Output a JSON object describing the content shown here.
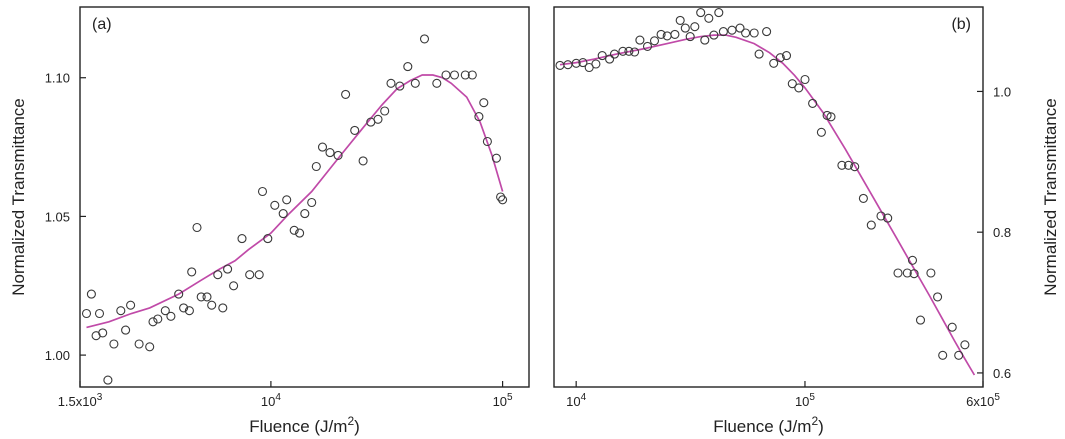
{
  "chart_data": [
    {
      "type": "scatter",
      "panel_label": "(a)",
      "xlabel": "Fluence (J/m",
      "xlabel_sup": "2",
      "xlabel_tail": ")",
      "ylabel": "Normalized Transmittance",
      "x_scale": "log",
      "xlim": [
        1500,
        130000
      ],
      "ylim": [
        0.9885,
        1.1255
      ],
      "xticks": [
        {
          "value": 1500,
          "base": "1.5x10",
          "exp": "3"
        },
        {
          "value": 10000,
          "base": "10",
          "exp": "4"
        },
        {
          "value": 100000,
          "base": "10",
          "exp": "5"
        }
      ],
      "yticks": [
        {
          "value": 1.0,
          "label": "1.00"
        },
        {
          "value": 1.05,
          "label": "1.05"
        },
        {
          "value": 1.1,
          "label": "1.10"
        }
      ],
      "y_axis_side": "left",
      "marker_color": "#3a3a3a",
      "fit_color": "#c04aa8",
      "points": [
        [
          1600,
          1.015
        ],
        [
          1680,
          1.022
        ],
        [
          1760,
          1.007
        ],
        [
          1820,
          1.015
        ],
        [
          1880,
          1.008
        ],
        [
          1980,
          0.991
        ],
        [
          2100,
          1.004
        ],
        [
          2250,
          1.016
        ],
        [
          2360,
          1.009
        ],
        [
          2480,
          1.018
        ],
        [
          2700,
          1.004
        ],
        [
          3000,
          1.003
        ],
        [
          3100,
          1.012
        ],
        [
          3250,
          1.013
        ],
        [
          3500,
          1.016
        ],
        [
          3700,
          1.014
        ],
        [
          4000,
          1.022
        ],
        [
          4200,
          1.017
        ],
        [
          4450,
          1.016
        ],
        [
          4550,
          1.03
        ],
        [
          4800,
          1.046
        ],
        [
          5000,
          1.021
        ],
        [
          5300,
          1.021
        ],
        [
          5550,
          1.018
        ],
        [
          5900,
          1.029
        ],
        [
          6200,
          1.017
        ],
        [
          6500,
          1.031
        ],
        [
          6900,
          1.025
        ],
        [
          7500,
          1.042
        ],
        [
          8100,
          1.029
        ],
        [
          8900,
          1.029
        ],
        [
          9200,
          1.059
        ],
        [
          9700,
          1.042
        ],
        [
          10400,
          1.054
        ],
        [
          11300,
          1.051
        ],
        [
          11700,
          1.056
        ],
        [
          12600,
          1.045
        ],
        [
          13300,
          1.044
        ],
        [
          14000,
          1.051
        ],
        [
          15000,
          1.055
        ],
        [
          15700,
          1.068
        ],
        [
          16700,
          1.075
        ],
        [
          18000,
          1.073
        ],
        [
          19500,
          1.072
        ],
        [
          21000,
          1.094
        ],
        [
          23000,
          1.081
        ],
        [
          25000,
          1.07
        ],
        [
          27000,
          1.084
        ],
        [
          29000,
          1.085
        ],
        [
          31000,
          1.088
        ],
        [
          33000,
          1.098
        ],
        [
          36000,
          1.097
        ],
        [
          39000,
          1.104
        ],
        [
          42000,
          1.098
        ],
        [
          46000,
          1.114
        ],
        [
          52000,
          1.098
        ],
        [
          57000,
          1.101
        ],
        [
          62000,
          1.101
        ],
        [
          69000,
          1.101
        ],
        [
          74000,
          1.101
        ],
        [
          79000,
          1.086
        ],
        [
          83000,
          1.091
        ],
        [
          86000,
          1.077
        ],
        [
          94000,
          1.071
        ],
        [
          98000,
          1.057
        ],
        [
          100000,
          1.056
        ]
      ],
      "fit_curve": [
        [
          1600,
          1.01
        ],
        [
          2000,
          1.012
        ],
        [
          2500,
          1.015
        ],
        [
          3000,
          1.017
        ],
        [
          4000,
          1.022
        ],
        [
          5000,
          1.027
        ],
        [
          6000,
          1.031
        ],
        [
          7000,
          1.034
        ],
        [
          8000,
          1.038
        ],
        [
          10000,
          1.044
        ],
        [
          12000,
          1.051
        ],
        [
          15000,
          1.059
        ],
        [
          20000,
          1.072
        ],
        [
          25000,
          1.082
        ],
        [
          30000,
          1.09
        ],
        [
          35000,
          1.096
        ],
        [
          40000,
          1.099
        ],
        [
          45000,
          1.101
        ],
        [
          50000,
          1.101
        ],
        [
          55000,
          1.1
        ],
        [
          60000,
          1.098
        ],
        [
          70000,
          1.093
        ],
        [
          80000,
          1.084
        ],
        [
          90000,
          1.072
        ],
        [
          100000,
          1.059
        ]
      ]
    },
    {
      "type": "scatter",
      "panel_label": "(b)",
      "xlabel": "Fluence (J/m",
      "xlabel_sup": "2",
      "xlabel_tail": ")",
      "ylabel": "Normalized Transmittance",
      "x_scale": "log",
      "xlim": [
        8000,
        600000
      ],
      "ylim": [
        0.58,
        1.12
      ],
      "xticks": [
        {
          "value": 10000,
          "base": "10",
          "exp": "4"
        },
        {
          "value": 100000,
          "base": "10",
          "exp": "5"
        },
        {
          "value": 600000,
          "base": "6x10",
          "exp": "5"
        }
      ],
      "yticks": [
        {
          "value": 0.6,
          "label": "0.6"
        },
        {
          "value": 0.8,
          "label": "0.8"
        },
        {
          "value": 1.0,
          "label": "1.0"
        }
      ],
      "y_axis_side": "right",
      "marker_color": "#3a3a3a",
      "fit_color": "#c04aa8",
      "points": [
        [
          8500,
          1.037
        ],
        [
          9200,
          1.038
        ],
        [
          10000,
          1.04
        ],
        [
          10700,
          1.041
        ],
        [
          11400,
          1.034
        ],
        [
          12200,
          1.039
        ],
        [
          13000,
          1.051
        ],
        [
          14000,
          1.046
        ],
        [
          14700,
          1.053
        ],
        [
          16000,
          1.057
        ],
        [
          17000,
          1.057
        ],
        [
          18000,
          1.056
        ],
        [
          19000,
          1.073
        ],
        [
          20500,
          1.064
        ],
        [
          22000,
          1.072
        ],
        [
          23500,
          1.081
        ],
        [
          25000,
          1.079
        ],
        [
          27000,
          1.081
        ],
        [
          28500,
          1.101
        ],
        [
          30000,
          1.09
        ],
        [
          31500,
          1.078
        ],
        [
          33000,
          1.092
        ],
        [
          35000,
          1.112
        ],
        [
          36500,
          1.073
        ],
        [
          38000,
          1.104
        ],
        [
          40000,
          1.08
        ],
        [
          42000,
          1.112
        ],
        [
          44000,
          1.085
        ],
        [
          48000,
          1.087
        ],
        [
          52000,
          1.09
        ],
        [
          55000,
          1.083
        ],
        [
          60000,
          1.083
        ],
        [
          63000,
          1.053
        ],
        [
          68000,
          1.085
        ],
        [
          73000,
          1.04
        ],
        [
          78000,
          1.048
        ],
        [
          83000,
          1.051
        ],
        [
          88000,
          1.011
        ],
        [
          94000,
          1.005
        ],
        [
          100000,
          1.017
        ],
        [
          108000,
          0.983
        ],
        [
          118000,
          0.942
        ],
        [
          125000,
          0.966
        ],
        [
          130000,
          0.964
        ],
        [
          145000,
          0.895
        ],
        [
          155000,
          0.895
        ],
        [
          165000,
          0.893
        ],
        [
          180000,
          0.848
        ],
        [
          195000,
          0.81
        ],
        [
          215000,
          0.823
        ],
        [
          230000,
          0.82
        ],
        [
          255000,
          0.742
        ],
        [
          280000,
          0.742
        ],
        [
          295000,
          0.76
        ],
        [
          300000,
          0.741
        ],
        [
          320000,
          0.675
        ],
        [
          355000,
          0.742
        ],
        [
          380000,
          0.708
        ],
        [
          400000,
          0.625
        ],
        [
          440000,
          0.665
        ],
        [
          470000,
          0.625
        ],
        [
          500000,
          0.64
        ]
      ],
      "fit_curve": [
        [
          8500,
          1.038
        ],
        [
          10000,
          1.041
        ],
        [
          12000,
          1.046
        ],
        [
          15000,
          1.053
        ],
        [
          20000,
          1.061
        ],
        [
          25000,
          1.068
        ],
        [
          30000,
          1.074
        ],
        [
          35000,
          1.078
        ],
        [
          40000,
          1.08
        ],
        [
          45000,
          1.08
        ],
        [
          50000,
          1.077
        ],
        [
          60000,
          1.068
        ],
        [
          70000,
          1.055
        ],
        [
          80000,
          1.04
        ],
        [
          90000,
          1.023
        ],
        [
          100000,
          1.005
        ],
        [
          120000,
          0.97
        ],
        [
          150000,
          0.918
        ],
        [
          200000,
          0.848
        ],
        [
          250000,
          0.793
        ],
        [
          300000,
          0.748
        ],
        [
          350000,
          0.71
        ],
        [
          400000,
          0.676
        ],
        [
          450000,
          0.646
        ],
        [
          500000,
          0.62
        ],
        [
          550000,
          0.597
        ]
      ]
    }
  ]
}
